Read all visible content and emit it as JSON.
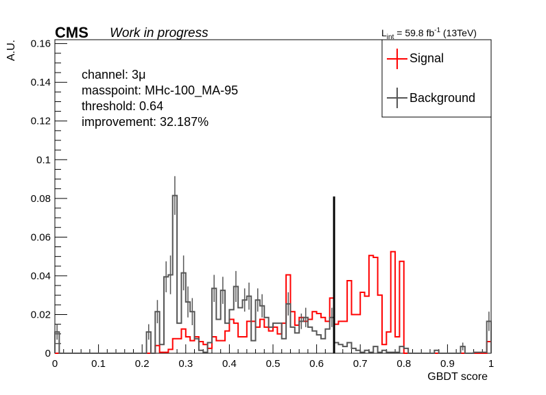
{
  "header": {
    "experiment": "CMS",
    "status": "Work in progress",
    "lumi_prefix": "L",
    "lumi_sub": "int",
    "lumi_value": " = 59.8 fb",
    "lumi_sup": "-1",
    "lumi_energy": " (13TeV)"
  },
  "info": {
    "channel": "channel: 3μ",
    "masspoint": "masspoint: MHc-100_MA-95",
    "threshold": "threshold: 0.64",
    "improvement": "improvement: 32.187%"
  },
  "colors": {
    "signal": "#ff0000",
    "background": "#555555",
    "threshold_line": "#000000"
  },
  "chart_data": {
    "type": "histogram",
    "xlabel": "GBDT score",
    "ylabel": "A.U.",
    "xlim": [
      0,
      1
    ],
    "ylim": [
      0,
      0.162
    ],
    "x_ticks": [
      "0",
      "0.1",
      "0.2",
      "0.3",
      "0.4",
      "0.5",
      "0.6",
      "0.7",
      "0.8",
      "0.9",
      "1"
    ],
    "y_ticks": [
      "0",
      "0.02",
      "0.04",
      "0.06",
      "0.08",
      "0.1",
      "0.12",
      "0.14",
      "0.16"
    ],
    "threshold": 0.64,
    "threshold_line_top": 0.081,
    "legend": {
      "placement": "top-right"
    },
    "series": [
      {
        "name": "Signal",
        "color": "#ff0000",
        "bins": [
          [
            0.0,
            0
          ],
          [
            0.01,
            0
          ],
          [
            0.02,
            0
          ],
          [
            0.03,
            0
          ],
          [
            0.04,
            0
          ],
          [
            0.05,
            0
          ],
          [
            0.06,
            0
          ],
          [
            0.07,
            0
          ],
          [
            0.08,
            0
          ],
          [
            0.09,
            0
          ],
          [
            0.1,
            0
          ],
          [
            0.11,
            0
          ],
          [
            0.12,
            0
          ],
          [
            0.13,
            0
          ],
          [
            0.14,
            0
          ],
          [
            0.15,
            0
          ],
          [
            0.16,
            0
          ],
          [
            0.17,
            0
          ],
          [
            0.18,
            0
          ],
          [
            0.19,
            0
          ],
          [
            0.2,
            0
          ],
          [
            0.21,
            0
          ],
          [
            0.22,
            0
          ],
          [
            0.23,
            0.004
          ],
          [
            0.24,
            0.0005
          ],
          [
            0.25,
            0.0005
          ],
          [
            0.26,
            0.002
          ],
          [
            0.27,
            0.0075
          ],
          [
            0.28,
            0.0075
          ],
          [
            0.29,
            0.0125
          ],
          [
            0.3,
            0.0085
          ],
          [
            0.31,
            0.0065
          ],
          [
            0.32,
            0.0085
          ],
          [
            0.33,
            0.006
          ],
          [
            0.34,
            0.0045
          ],
          [
            0.35,
            0.0025
          ],
          [
            0.36,
            0.0085
          ],
          [
            0.37,
            0.0065
          ],
          [
            0.38,
            0.0065
          ],
          [
            0.39,
            0.0115
          ],
          [
            0.4,
            0.0175
          ],
          [
            0.41,
            0.0155
          ],
          [
            0.42,
            0.0085
          ],
          [
            0.43,
            0.0085
          ],
          [
            0.44,
            0.0165
          ],
          [
            0.45,
            0.0165
          ],
          [
            0.46,
            0.0135
          ],
          [
            0.47,
            0.0175
          ],
          [
            0.48,
            0.0135
          ],
          [
            0.49,
            0.0115
          ],
          [
            0.5,
            0.0135
          ],
          [
            0.51,
            0.01
          ],
          [
            0.52,
            0.0155
          ],
          [
            0.53,
            0.0405
          ],
          [
            0.54,
            0.0215
          ],
          [
            0.55,
            0.0145
          ],
          [
            0.56,
            0.0185
          ],
          [
            0.57,
            0.0165
          ],
          [
            0.58,
            0.0175
          ],
          [
            0.59,
            0.0215
          ],
          [
            0.6,
            0.0205
          ],
          [
            0.61,
            0.0185
          ],
          [
            0.62,
            0.0165
          ],
          [
            0.63,
            0.0285
          ],
          [
            0.64,
            0.015
          ],
          [
            0.65,
            0.0165
          ],
          [
            0.66,
            0.0165
          ],
          [
            0.67,
            0.0375
          ],
          [
            0.68,
            0.02
          ],
          [
            0.69,
            0.02
          ],
          [
            0.7,
            0.0315
          ],
          [
            0.71,
            0.0295
          ],
          [
            0.72,
            0.0505
          ],
          [
            0.73,
            0.0495
          ],
          [
            0.74,
            0.03
          ],
          [
            0.75,
            0.0045
          ],
          [
            0.76,
            0.011
          ],
          [
            0.77,
            0.0525
          ],
          [
            0.78,
            0.0085
          ],
          [
            0.79,
            0.0475
          ],
          [
            0.8,
            0
          ],
          [
            0.81,
            0
          ],
          [
            0.82,
            0
          ],
          [
            0.83,
            0
          ],
          [
            0.84,
            0
          ],
          [
            0.85,
            0
          ],
          [
            0.86,
            0
          ],
          [
            0.87,
            0
          ],
          [
            0.88,
            0
          ],
          [
            0.89,
            0
          ],
          [
            0.9,
            0
          ],
          [
            0.91,
            0
          ],
          [
            0.92,
            0
          ],
          [
            0.93,
            0
          ],
          [
            0.94,
            0
          ],
          [
            0.95,
            0
          ],
          [
            0.96,
            0
          ],
          [
            0.97,
            0
          ],
          [
            0.98,
            0
          ],
          [
            0.99,
            0.006
          ]
        ]
      },
      {
        "name": "Background",
        "color": "#555555",
        "bins": [
          [
            0.0,
            0.011
          ],
          [
            0.01,
            0
          ],
          [
            0.02,
            0
          ],
          [
            0.03,
            0
          ],
          [
            0.04,
            0
          ],
          [
            0.05,
            0
          ],
          [
            0.06,
            0
          ],
          [
            0.07,
            0
          ],
          [
            0.08,
            0
          ],
          [
            0.09,
            0
          ],
          [
            0.1,
            0
          ],
          [
            0.11,
            0
          ],
          [
            0.12,
            0
          ],
          [
            0.13,
            0
          ],
          [
            0.14,
            0
          ],
          [
            0.15,
            0
          ],
          [
            0.16,
            0
          ],
          [
            0.17,
            0
          ],
          [
            0.18,
            0
          ],
          [
            0.19,
            0
          ],
          [
            0.2,
            0
          ],
          [
            0.21,
            0.011
          ],
          [
            0.22,
            0
          ],
          [
            0.23,
            0.0215
          ],
          [
            0.24,
            0.0045
          ],
          [
            0.25,
            0.0395
          ],
          [
            0.26,
            0.0405
          ],
          [
            0.27,
            0.0815
          ],
          [
            0.28,
            0.0155
          ],
          [
            0.29,
            0.0415
          ],
          [
            0.3,
            0.0265
          ],
          [
            0.31,
            0.0215
          ],
          [
            0.32,
            0.0075
          ],
          [
            0.33,
            0.0015
          ],
          [
            0.34,
            0.0005
          ],
          [
            0.35,
            0.0055
          ],
          [
            0.36,
            0.0335
          ],
          [
            0.37,
            0.0175
          ],
          [
            0.38,
            0.0325
          ],
          [
            0.39,
            0.0155
          ],
          [
            0.4,
            0.0225
          ],
          [
            0.41,
            0.0345
          ],
          [
            0.42,
            0.0235
          ],
          [
            0.43,
            0.0275
          ],
          [
            0.44,
            0.0295
          ],
          [
            0.45,
            0.0065
          ],
          [
            0.46,
            0.0275
          ],
          [
            0.47,
            0.0245
          ],
          [
            0.48,
            0.0185
          ],
          [
            0.49,
            0.0135
          ],
          [
            0.5,
            0.0155
          ],
          [
            0.51,
            0.0155
          ],
          [
            0.52,
            0.0075
          ],
          [
            0.53,
            0.0255
          ],
          [
            0.54,
            0.0135
          ],
          [
            0.55,
            0.0105
          ],
          [
            0.56,
            0.0165
          ],
          [
            0.57,
            0.0185
          ],
          [
            0.58,
            0.0135
          ],
          [
            0.59,
            0.0115
          ],
          [
            0.6,
            0.0095
          ],
          [
            0.61,
            0.0075
          ],
          [
            0.62,
            0.0125
          ],
          [
            0.63,
            0.0185
          ],
          [
            0.64,
            0.0055
          ],
          [
            0.65,
            0.0045
          ],
          [
            0.66,
            0.0035
          ],
          [
            0.67,
            0.0055
          ],
          [
            0.68,
            0.0025
          ],
          [
            0.69,
            0.0015
          ],
          [
            0.7,
            0.0005
          ],
          [
            0.71,
            0.0015
          ],
          [
            0.72,
            0.0005
          ],
          [
            0.73,
            0.0035
          ],
          [
            0.74,
            0.0005
          ],
          [
            0.75,
            0.0015
          ],
          [
            0.76,
            0.0005
          ],
          [
            0.77,
            0.0005
          ],
          [
            0.78,
            0.0005
          ],
          [
            0.79,
            0.0035
          ],
          [
            0.8,
            0.0025
          ],
          [
            0.81,
            0
          ],
          [
            0.82,
            0
          ],
          [
            0.83,
            0
          ],
          [
            0.84,
            0
          ],
          [
            0.85,
            0
          ],
          [
            0.86,
            0
          ],
          [
            0.87,
            0.0015
          ],
          [
            0.88,
            0
          ],
          [
            0.89,
            0
          ],
          [
            0.9,
            0
          ],
          [
            0.91,
            0
          ],
          [
            0.92,
            0
          ],
          [
            0.93,
            0.0035
          ],
          [
            0.94,
            0
          ],
          [
            0.95,
            0
          ],
          [
            0.96,
            0.0005
          ],
          [
            0.97,
            0.0005
          ],
          [
            0.98,
            0.0005
          ],
          [
            0.99,
            0.0165
          ]
        ],
        "errors": {
          "0.0": 0.004,
          "0.21": 0.004,
          "0.23": 0.006,
          "0.25": 0.008,
          "0.26": 0.01,
          "0.27": 0.01,
          "0.29": 0.009,
          "0.3": 0.008,
          "0.31": 0.007,
          "0.36": 0.007,
          "0.38": 0.007,
          "0.41": 0.008,
          "0.43": 0.006,
          "0.44": 0.007,
          "0.46": 0.006,
          "0.47": 0.006,
          "0.53": 0.006,
          "0.56": 0.004,
          "0.57": 0.005,
          "0.63": 0.005,
          "0.93": 0.002,
          "0.99": 0.005
        }
      }
    ]
  }
}
